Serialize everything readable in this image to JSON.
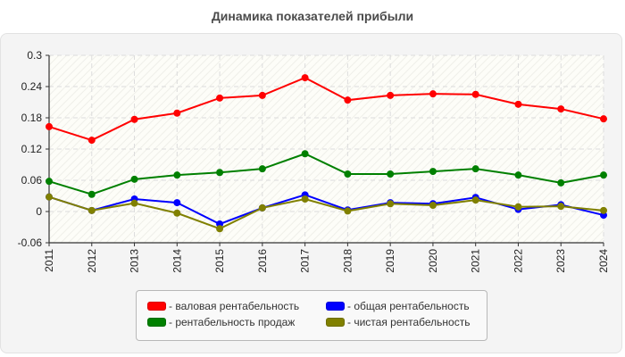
{
  "title": "Динамика показателей прибыли",
  "chart_data": {
    "type": "line",
    "title": "Динамика показателей прибыли",
    "xlabel": "",
    "ylabel": "",
    "x": [
      "2011",
      "2012",
      "2013",
      "2014",
      "2015",
      "2016",
      "2017",
      "2018",
      "2019",
      "2020",
      "2021",
      "2022",
      "2023",
      "2024"
    ],
    "ylim": [
      -0.06,
      0.3
    ],
    "yticks": [
      "0.3",
      "0.24",
      "0.18",
      "0.12",
      "0.06",
      "0",
      "-0.06"
    ],
    "ytick_values": [
      0.3,
      0.24,
      0.18,
      0.12,
      0.06,
      0,
      -0.06
    ],
    "grid": true,
    "legend_position": "bottom",
    "series": [
      {
        "name": "валовая рентабельность",
        "color": "#ff0000",
        "values": [
          0.163,
          0.137,
          0.177,
          0.189,
          0.218,
          0.223,
          0.257,
          0.214,
          0.223,
          0.226,
          0.225,
          0.206,
          0.197,
          0.178
        ]
      },
      {
        "name": "рентабельность продаж",
        "color": "#008000",
        "values": [
          0.058,
          0.033,
          0.062,
          0.07,
          0.075,
          0.082,
          0.111,
          0.072,
          0.072,
          0.077,
          0.082,
          0.07,
          0.055,
          0.07
        ]
      },
      {
        "name": "общая рентабельность",
        "color": "#0000ff",
        "values": [
          0.028,
          0.002,
          0.024,
          0.017,
          -0.024,
          0.007,
          0.032,
          0.003,
          0.017,
          0.015,
          0.027,
          0.004,
          0.013,
          -0.007
        ]
      },
      {
        "name": "чистая рентабельность",
        "color": "#808000",
        "values": [
          0.028,
          0.002,
          0.016,
          -0.003,
          -0.033,
          0.007,
          0.024,
          0.001,
          0.015,
          0.012,
          0.022,
          0.009,
          0.01,
          0.002
        ]
      }
    ]
  },
  "legend": {
    "items": [
      {
        "label": "- валовая рентабельность",
        "color": "#ff0000"
      },
      {
        "label": "- общая рентабельность",
        "color": "#0000ff"
      },
      {
        "label": "- рентабельность продаж",
        "color": "#008000"
      },
      {
        "label": "- чистая рентабельность",
        "color": "#808000"
      }
    ]
  }
}
